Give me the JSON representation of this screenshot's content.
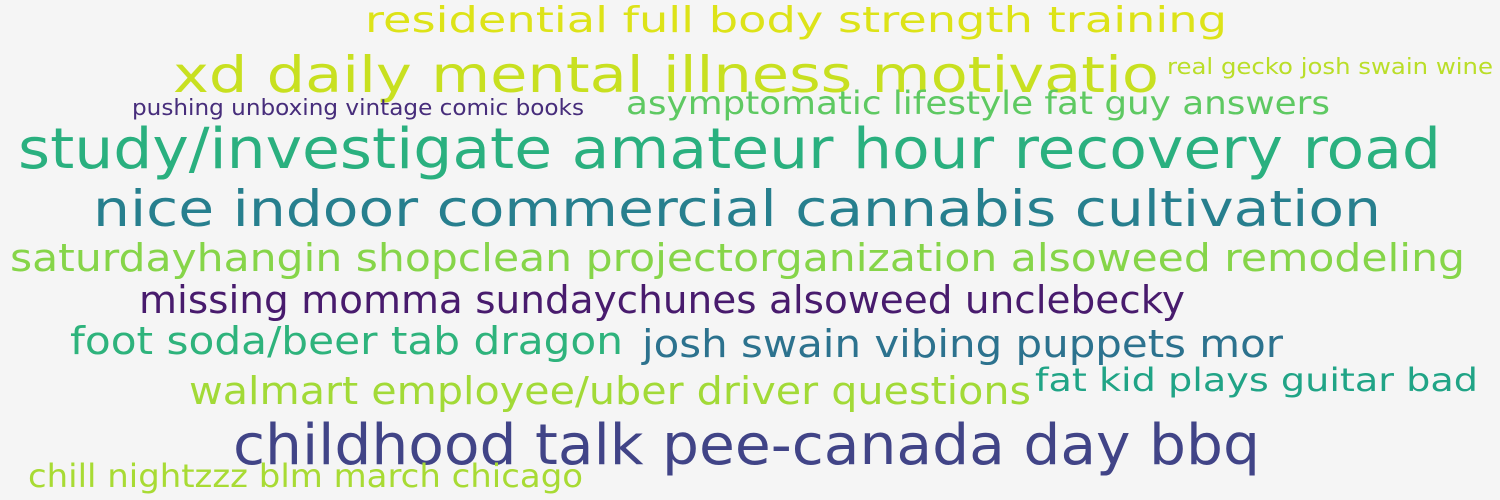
{
  "background": "#f5f5f5",
  "words": [
    {
      "text": "residential full body strength training",
      "color": "#dde318"
    },
    {
      "text": "xd daily mental illness motivatio",
      "color": "#c8e020"
    },
    {
      "text": "real gecko josh swain wine",
      "color": "#bade28"
    },
    {
      "text": "pushing unboxing vintage comic books",
      "color": "#472d7b"
    },
    {
      "text": "asymptomatic lifestyle fat guy answers",
      "color": "#5ec962"
    },
    {
      "text": "study/investigate amateur hour recovery road",
      "color": "#2ab07f"
    },
    {
      "text": "nice indoor commercial cannabis cultivation",
      "color": "#277f8e"
    },
    {
      "text": "saturdayhangin shopclean projectorganization alsoweed remodeling",
      "color": "#86d549"
    },
    {
      "text": "missing momma sundaychunes alsoweed unclebecky",
      "color": "#481b6d"
    },
    {
      "text": "foot soda/beer tab dragon",
      "color": "#2eb37c"
    },
    {
      "text": "josh swain vibing puppets mor",
      "color": "#2c728e"
    },
    {
      "text": "walmart employee/uber driver questions",
      "color": "#a2da37"
    },
    {
      "text": "fat kid plays guitar bad",
      "color": "#20a486"
    },
    {
      "text": "childhood talk pee-canada day bbq",
      "color": "#414487"
    },
    {
      "text": "chill nightzzz blm march chicago",
      "color": "#a8db34"
    }
  ]
}
